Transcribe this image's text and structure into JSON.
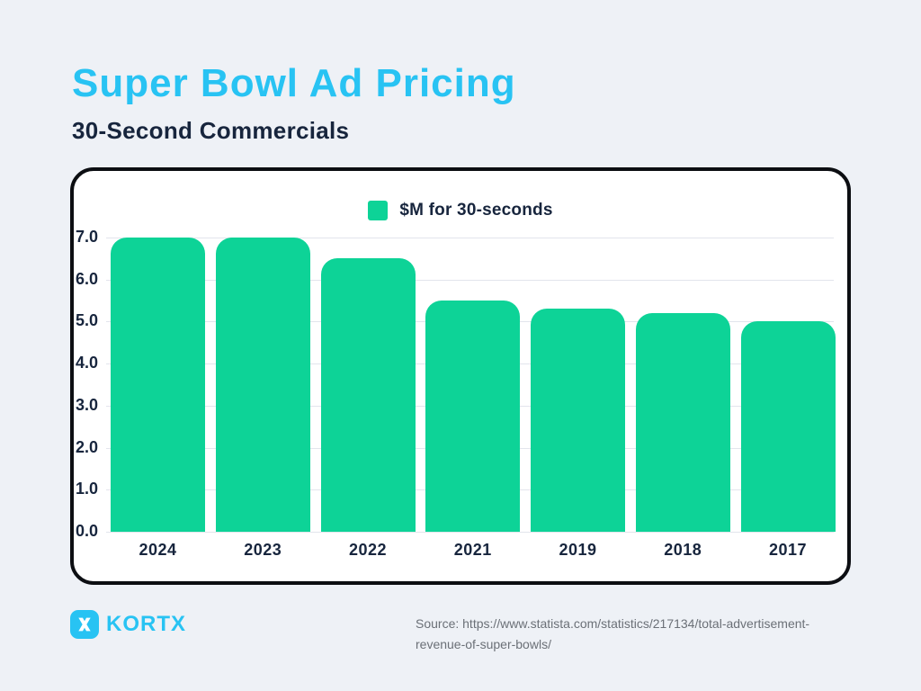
{
  "page": {
    "title": "Super Bowl Ad Pricing",
    "subtitle": "30-Second Commercials"
  },
  "legend": {
    "label": "$M for 30-seconds"
  },
  "logo": {
    "brand": "KORTX",
    "mark": "x-icon"
  },
  "source": {
    "line1": "Source: https://www.statista.com/statistics/217134/total-advertisement-",
    "line2": "revenue-of-super-bowls/"
  },
  "colors": {
    "accent_cyan": "#28c3f3",
    "navy_text": "#17253d",
    "bar_green": "#0dd397",
    "background": "#eef1f6",
    "card_border": "#0c0e12",
    "gridline": "#e2e5ec",
    "source_gray": "#6b7077"
  },
  "chart_data": {
    "type": "bar",
    "title": "Super Bowl Ad Pricing",
    "subtitle": "30-Second Commercials",
    "categories": [
      "2024",
      "2023",
      "2022",
      "2021",
      "2019",
      "2018",
      "2017"
    ],
    "values": [
      7.0,
      7.0,
      6.5,
      5.5,
      5.3,
      5.2,
      5.0
    ],
    "series_name": "$M for 30-seconds",
    "xlabel": "",
    "ylabel": "",
    "ylim": [
      0,
      7
    ],
    "ytick_step": 1,
    "ytick_labels": [
      "7.0",
      "6.0",
      "5.0",
      "4.0",
      "3.0",
      "2.0",
      "1.0",
      "0.0"
    ],
    "grid": true,
    "legend_position": "top-center",
    "bar_color": "#0dd397"
  }
}
